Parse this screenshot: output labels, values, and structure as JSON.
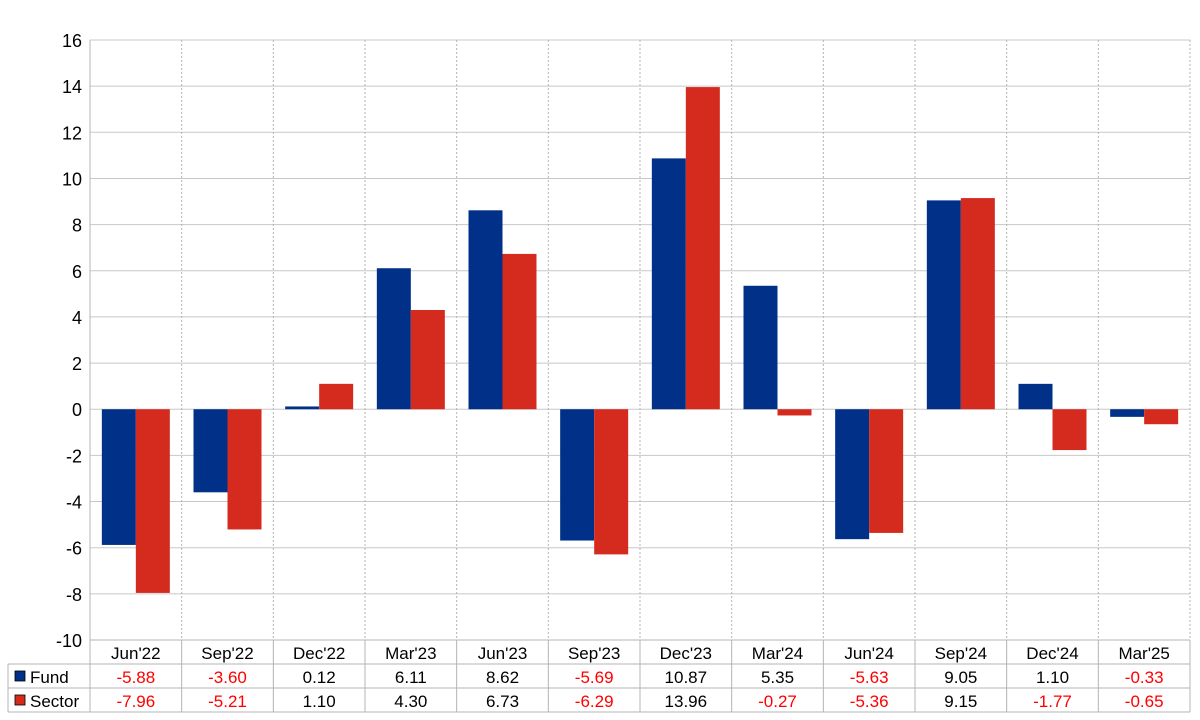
{
  "chart_data": {
    "type": "bar",
    "categories": [
      "Jun'22",
      "Sep'22",
      "Dec'22",
      "Mar'23",
      "Jun'23",
      "Sep'23",
      "Dec'23",
      "Mar'24",
      "Jun'24",
      "Sep'24",
      "Dec'24",
      "Mar'25"
    ],
    "series": [
      {
        "name": "Fund",
        "values": [
          -5.88,
          -3.6,
          0.12,
          6.11,
          8.62,
          -5.69,
          10.87,
          5.35,
          -5.63,
          9.05,
          1.1,
          -0.33
        ],
        "labels": [
          "-5.88",
          "-3.60",
          "0.12",
          "6.11",
          "8.62",
          "-5.69",
          "10.87",
          "5.35",
          "-5.63",
          "9.05",
          "1.10",
          "-0.33"
        ],
        "color": "#003087"
      },
      {
        "name": "Sector",
        "values": [
          -7.96,
          -5.21,
          1.1,
          4.3,
          6.73,
          -6.29,
          13.96,
          -0.27,
          -5.36,
          9.15,
          -1.77,
          -0.65
        ],
        "labels": [
          "-7.96",
          "-5.21",
          "1.10",
          "4.30",
          "6.73",
          "-6.29",
          "13.96",
          "-0.27",
          "-5.36",
          "9.15",
          "-1.77",
          "-0.65"
        ],
        "color": "#d52b1e"
      }
    ],
    "ylim": [
      -10,
      16
    ],
    "yticks": [
      "-10",
      "-8",
      "-6",
      "-4",
      "-2",
      "0",
      "2",
      "4",
      "6",
      "8",
      "10",
      "12",
      "14",
      "16"
    ],
    "grid": true,
    "legend": "data-table-bottom",
    "negative_color": "#ff0000",
    "positive_color": "#000000"
  }
}
